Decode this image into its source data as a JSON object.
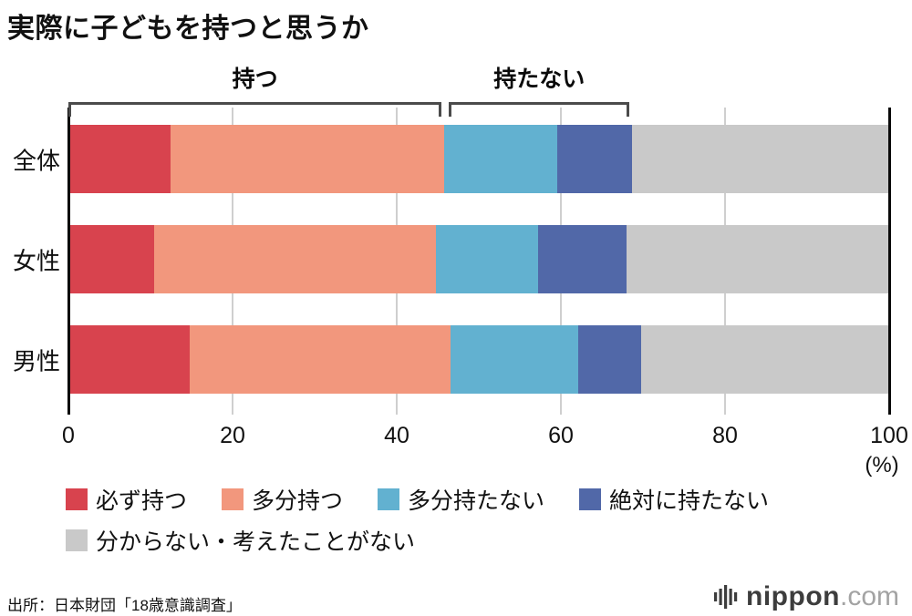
{
  "title": "実際に子どもを持つと思うか",
  "source": "出所：日本財団「18歳意識調査」",
  "logo": {
    "name": "nippon",
    "domain": ".com"
  },
  "chart_data": {
    "type": "bar",
    "orientation": "horizontal",
    "stacked": true,
    "grid": true,
    "legend_position": "bottom",
    "categories": [
      "全体",
      "女性",
      "男性"
    ],
    "series": [
      {
        "name": "必ず持つ",
        "color": "#d8434e",
        "values": [
          12.4,
          10.4,
          14.8
        ]
      },
      {
        "name": "多分持つ",
        "color": "#f2977d",
        "values": [
          33.4,
          34.4,
          31.8
        ]
      },
      {
        "name": "多分持たない",
        "color": "#62b1d0",
        "values": [
          13.8,
          12.4,
          15.5
        ]
      },
      {
        "name": "絶対に持たない",
        "color": "#5168a8",
        "values": [
          9.1,
          10.8,
          7.7
        ]
      },
      {
        "name": "分からない・考えたことがない",
        "color": "#c9c9c9",
        "values": [
          31.3,
          32.0,
          30.2
        ]
      }
    ],
    "x_ticks": [
      0,
      20,
      40,
      60,
      80,
      100
    ],
    "x_unit": "(%)",
    "xlim": [
      0,
      100
    ],
    "annotations": [
      {
        "label": "持つ",
        "from": 0,
        "to": 45.8
      },
      {
        "label": "持たない",
        "from": 45.8,
        "to": 68.7
      }
    ]
  }
}
